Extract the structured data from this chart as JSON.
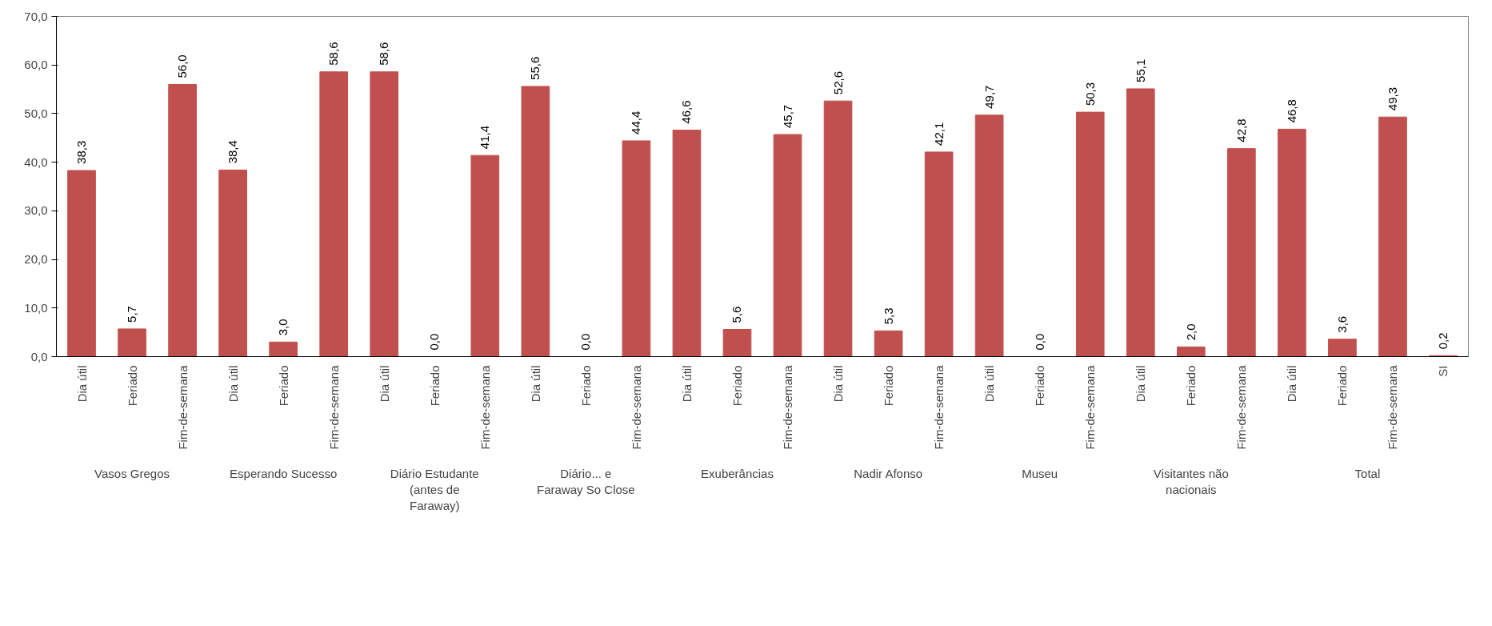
{
  "chart_data": {
    "type": "bar",
    "categories": [
      "Dia útil",
      "Feriado",
      "Fim-de-semana",
      "Dia útil",
      "Feriado",
      "Fim-de-semana",
      "Dia útil",
      "Feriado",
      "Fim-de-semana",
      "Dia útil",
      "Feriado",
      "Fim-de-semana",
      "Dia útil",
      "Feriado",
      "Fim-de-semana",
      "Dia útil",
      "Feriado",
      "Fim-de-semana",
      "Dia útil",
      "Feriado",
      "Fim-de-semana",
      "Dia útil",
      "Feriado",
      "Fim-de-semana",
      "Dia útil",
      "Feriado",
      "Fim-de-semana",
      "SI"
    ],
    "values": [
      38.3,
      5.7,
      56.0,
      38.4,
      3.0,
      58.6,
      58.6,
      0.0,
      41.4,
      55.6,
      0.0,
      44.4,
      46.6,
      5.6,
      45.7,
      52.6,
      5.3,
      42.1,
      49.7,
      0.0,
      50.3,
      55.1,
      2.0,
      42.8,
      46.8,
      3.6,
      49.3,
      0.2
    ],
    "value_labels": [
      "38,3",
      "5,7",
      "56,0",
      "38,4",
      "3,0",
      "58,6",
      "58,6",
      "0,0",
      "41,4",
      "55,6",
      "0,0",
      "44,4",
      "46,6",
      "5,6",
      "45,7",
      "52,6",
      "5,3",
      "42,1",
      "49,7",
      "0,0",
      "50,3",
      "55,1",
      "2,0",
      "42,8",
      "46,8",
      "3,6",
      "49,3",
      "0,2"
    ],
    "color": "#c0504d",
    "annotations": [
      "Vasos Gregos",
      "Esperando Sucesso",
      "Diário Estudante (antes de Faraway)",
      "Diário... e Faraway So Close",
      "Exuberâncias",
      "Nadir Afonso",
      "Museu",
      "Visitantes não nacionais",
      "Total"
    ],
    "ylim": [
      0,
      70
    ],
    "yticks": [
      {
        "value": 0,
        "label": "0,0"
      },
      {
        "value": 10,
        "label": "10,0"
      },
      {
        "value": 20,
        "label": "20,0"
      },
      {
        "value": 30,
        "label": "30,0"
      },
      {
        "value": 40,
        "label": "40,0"
      },
      {
        "value": 50,
        "label": "50,0"
      },
      {
        "value": 60,
        "label": "60,0"
      },
      {
        "value": 70,
        "label": "70,0"
      }
    ],
    "grid": false
  }
}
